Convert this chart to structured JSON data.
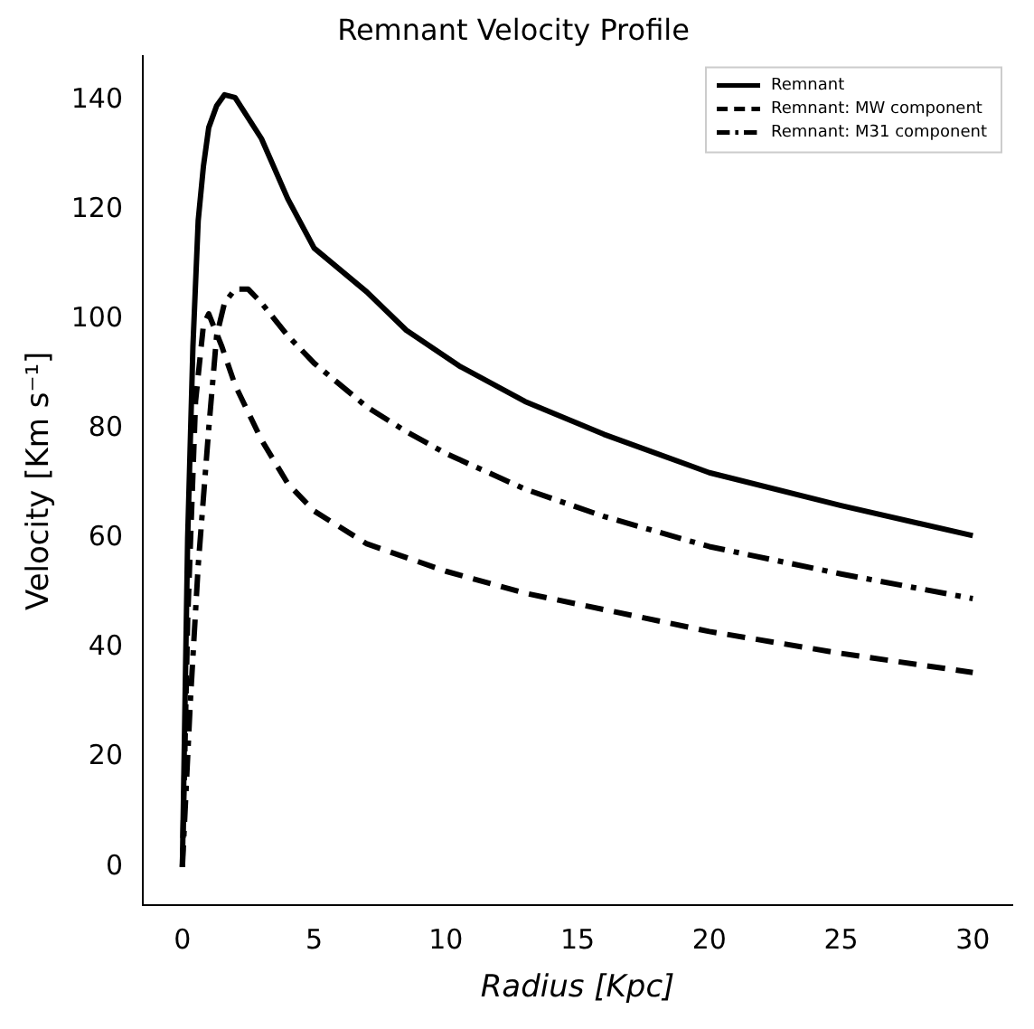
{
  "chart_data": {
    "type": "line",
    "title": "Remnant Velocity Profile",
    "xlabel": "Radius [Kpc]",
    "ylabel": "Velocity [Km s⁻¹]",
    "xlim": [
      -1.5,
      31.5
    ],
    "ylim": [
      -7,
      148
    ],
    "xticks": [
      0,
      5,
      10,
      15,
      20,
      25,
      30
    ],
    "yticks": [
      0,
      20,
      40,
      60,
      80,
      100,
      120,
      140
    ],
    "grid": false,
    "legend": "top right",
    "marker": "none",
    "series": [
      {
        "name": "Remnant",
        "color": "#000000",
        "line_style": "solid",
        "x": [
          0,
          0.2,
          0.4,
          0.6,
          0.8,
          1,
          1.3,
          1.6,
          2,
          3,
          4,
          5,
          7,
          8.5,
          10.5,
          13,
          16,
          20,
          25,
          30
        ],
        "values": [
          0,
          60,
          95,
          118,
          128,
          135,
          139,
          141,
          140.5,
          133,
          122,
          113,
          105,
          98,
          91.5,
          85,
          79,
          72,
          66,
          60.5
        ]
      },
      {
        "name": "Remnant: MW component",
        "color": "#000000",
        "line_style": "dashed",
        "x": [
          0,
          0.2,
          0.5,
          0.8,
          1,
          1.5,
          2,
          3,
          4,
          5,
          7,
          10,
          13,
          16,
          20,
          25,
          30
        ],
        "values": [
          0,
          45,
          85,
          99,
          101,
          95,
          88,
          78,
          70,
          65,
          59,
          54,
          50,
          47,
          43,
          39,
          35.5
        ]
      },
      {
        "name": "Remnant: M31 component",
        "color": "#000000",
        "line_style": "dashdot",
        "x": [
          0,
          0.3,
          0.6,
          1,
          1.3,
          1.6,
          2,
          2.5,
          3,
          4,
          5,
          7,
          8.5,
          10,
          13,
          16,
          20,
          25,
          30
        ],
        "values": [
          0,
          30,
          55,
          80,
          97,
          103,
          105.5,
          105.5,
          103,
          97,
          92,
          84,
          79.5,
          75.5,
          69,
          64,
          58.5,
          53.5,
          49
        ]
      }
    ]
  }
}
